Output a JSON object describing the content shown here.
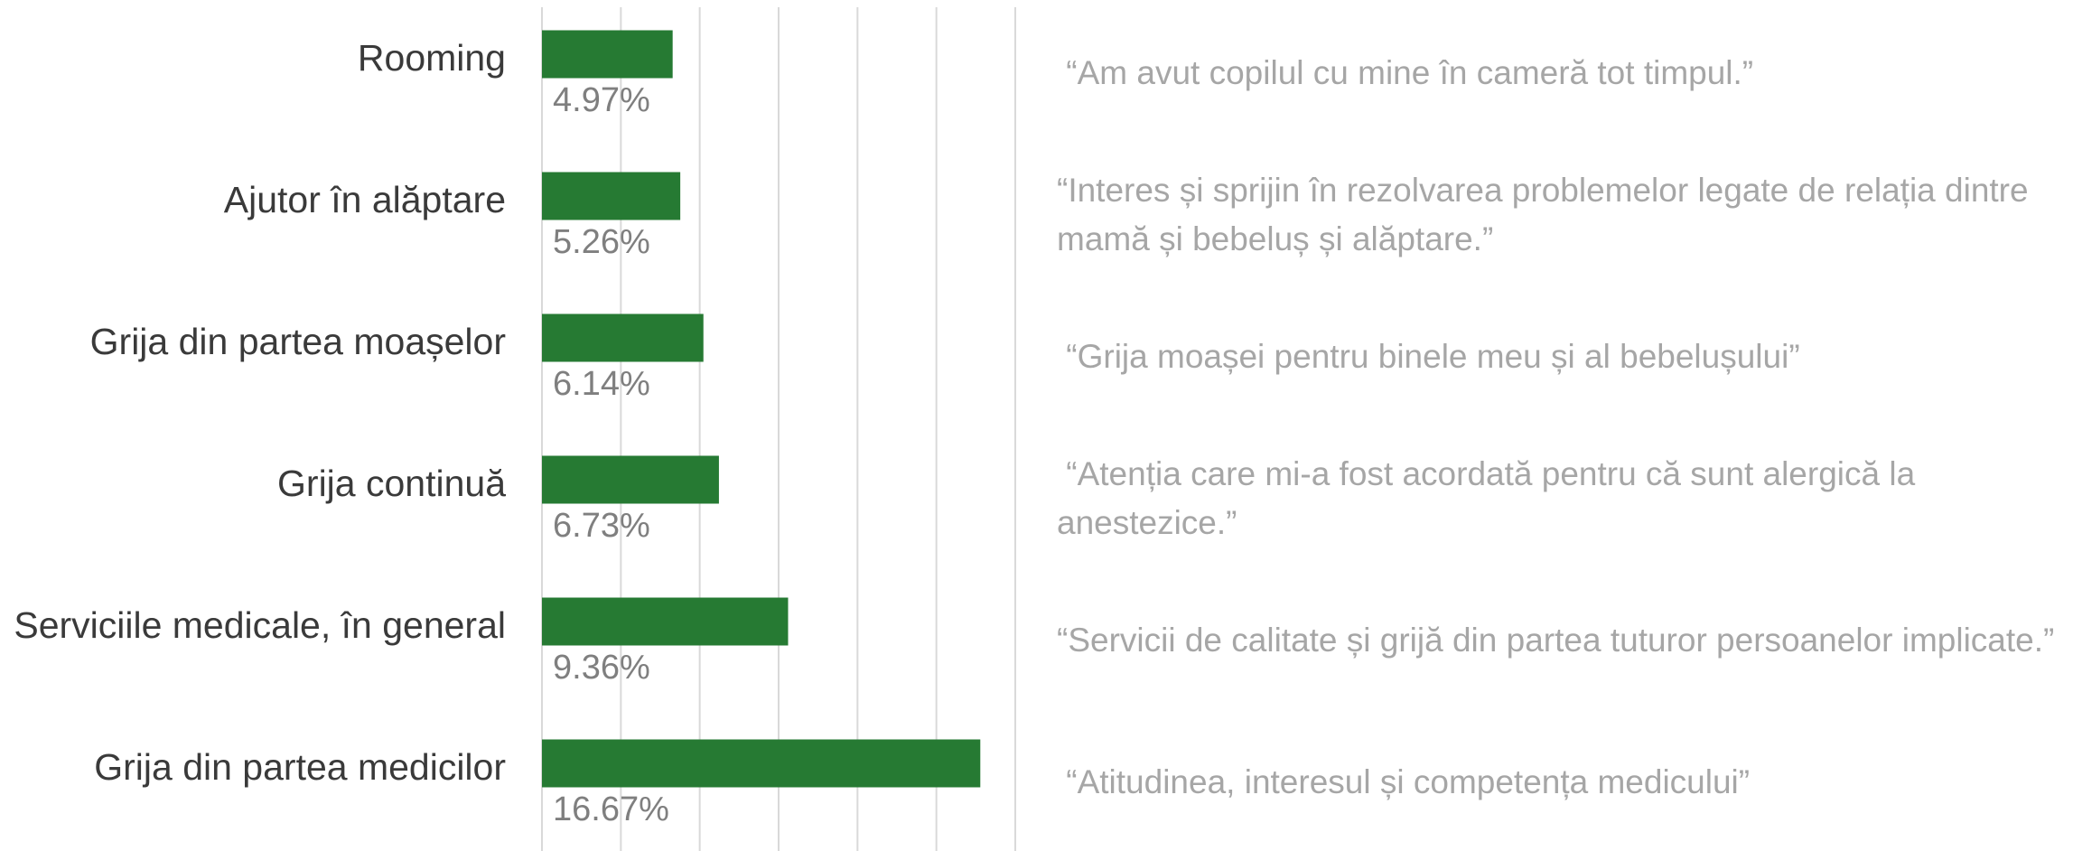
{
  "chart_data": {
    "type": "barh",
    "categories": [
      "Rooming",
      "Ajutor în alăptare",
      "Grija din partea moașelor",
      "Grija continuă",
      "Serviciile medicale, în general",
      "Grija din partea medicilor"
    ],
    "values": [
      4.97,
      5.26,
      6.14,
      6.73,
      9.36,
      16.67
    ],
    "value_labels": [
      "4.97%",
      "5.26%",
      "6.14%",
      "6.73%",
      "9.36%",
      "16.67%"
    ],
    "color": "#267a33",
    "xlim": [
      0,
      18
    ],
    "xticks": [
      0,
      3,
      6,
      9,
      12,
      15,
      18
    ],
    "grid": true,
    "annotations": [
      " “Am avut copilul cu mine în cameră tot timpul.”",
      "“Interes și sprijin în rezolvarea problemelor legate de relația dintre mamă și bebeluș și alăptare.”",
      " “Grija moașei pentru binele meu și al bebelușului”",
      " “Atenția care mi-a fost acordată pentru că sunt alergică la anestezice.”",
      "“Servicii de calitate și grijă din partea tuturor persoanelor implicate.”",
      " “Atitudinea, interesul și competența medicului”"
    ]
  }
}
